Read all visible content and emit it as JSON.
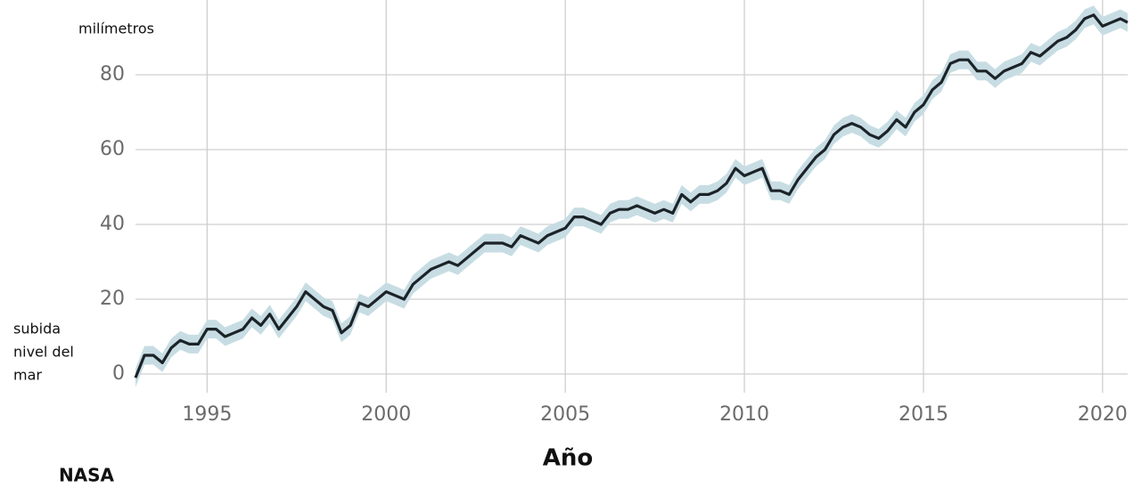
{
  "chart_data": {
    "type": "line",
    "y_unit_label": "milímetros",
    "y_label_lines": [
      "subida",
      "nivel del",
      "mar"
    ],
    "x_label": "Año",
    "source": "NASA",
    "x": [
      1993.0,
      1993.25,
      1993.5,
      1993.75,
      1994.0,
      1994.25,
      1994.5,
      1994.75,
      1995.0,
      1995.25,
      1995.5,
      1995.75,
      1996.0,
      1996.25,
      1996.5,
      1996.75,
      1997.0,
      1997.25,
      1997.5,
      1997.75,
      1998.0,
      1998.25,
      1998.5,
      1998.75,
      1999.0,
      1999.25,
      1999.5,
      1999.75,
      2000.0,
      2000.25,
      2000.5,
      2000.75,
      2001.0,
      2001.25,
      2001.5,
      2001.75,
      2002.0,
      2002.25,
      2002.5,
      2002.75,
      2003.0,
      2003.25,
      2003.5,
      2003.75,
      2004.0,
      2004.25,
      2004.5,
      2004.75,
      2005.0,
      2005.25,
      2005.5,
      2005.75,
      2006.0,
      2006.25,
      2006.5,
      2006.75,
      2007.0,
      2007.25,
      2007.5,
      2007.75,
      2008.0,
      2008.25,
      2008.5,
      2008.75,
      2009.0,
      2009.25,
      2009.5,
      2009.75,
      2010.0,
      2010.25,
      2010.5,
      2010.75,
      2011.0,
      2011.25,
      2011.5,
      2011.75,
      2012.0,
      2012.25,
      2012.5,
      2012.75,
      2013.0,
      2013.25,
      2013.5,
      2013.75,
      2014.0,
      2014.25,
      2014.5,
      2014.75,
      2015.0,
      2015.25,
      2015.5,
      2015.75,
      2016.0,
      2016.25,
      2016.5,
      2016.75,
      2017.0,
      2017.25,
      2017.5,
      2017.75,
      2018.0,
      2018.25,
      2018.5,
      2018.75,
      2019.0,
      2019.25,
      2019.5,
      2019.75,
      2020.0,
      2020.25,
      2020.5,
      2020.7
    ],
    "series": [
      {
        "name": "subida nivel del mar",
        "color": "#1c2328",
        "band_color": "#c7dde3",
        "values": [
          -1,
          5,
          5,
          3,
          7,
          9,
          8,
          8,
          12,
          12,
          10,
          11,
          12,
          15,
          13,
          16,
          12,
          15,
          18,
          22,
          20,
          18,
          17,
          11,
          13,
          19,
          18,
          20,
          22,
          21,
          20,
          24,
          26,
          28,
          29,
          30,
          29,
          31,
          33,
          35,
          35,
          35,
          34,
          37,
          36,
          35,
          37,
          38,
          39,
          42,
          42,
          41,
          40,
          43,
          44,
          44,
          45,
          44,
          43,
          44,
          43,
          48,
          46,
          48,
          48,
          49,
          51,
          55,
          53,
          54,
          55,
          49,
          49,
          48,
          52,
          55,
          58,
          60,
          64,
          66,
          67,
          66,
          64,
          63,
          65,
          68,
          66,
          70,
          72,
          76,
          78,
          83,
          84,
          84,
          81,
          81,
          79,
          81,
          82,
          83,
          86,
          85,
          87,
          89,
          90,
          92,
          95,
          96,
          93,
          94,
          95,
          94
        ]
      }
    ],
    "uncertainty": 2.5,
    "xlim": [
      1993,
      2020.7
    ],
    "ylim": [
      -5,
      100
    ],
    "xticks": [
      1995,
      2000,
      2005,
      2010,
      2015,
      2020
    ],
    "yticks": [
      0,
      20,
      40,
      60,
      80
    ],
    "grid": true
  }
}
